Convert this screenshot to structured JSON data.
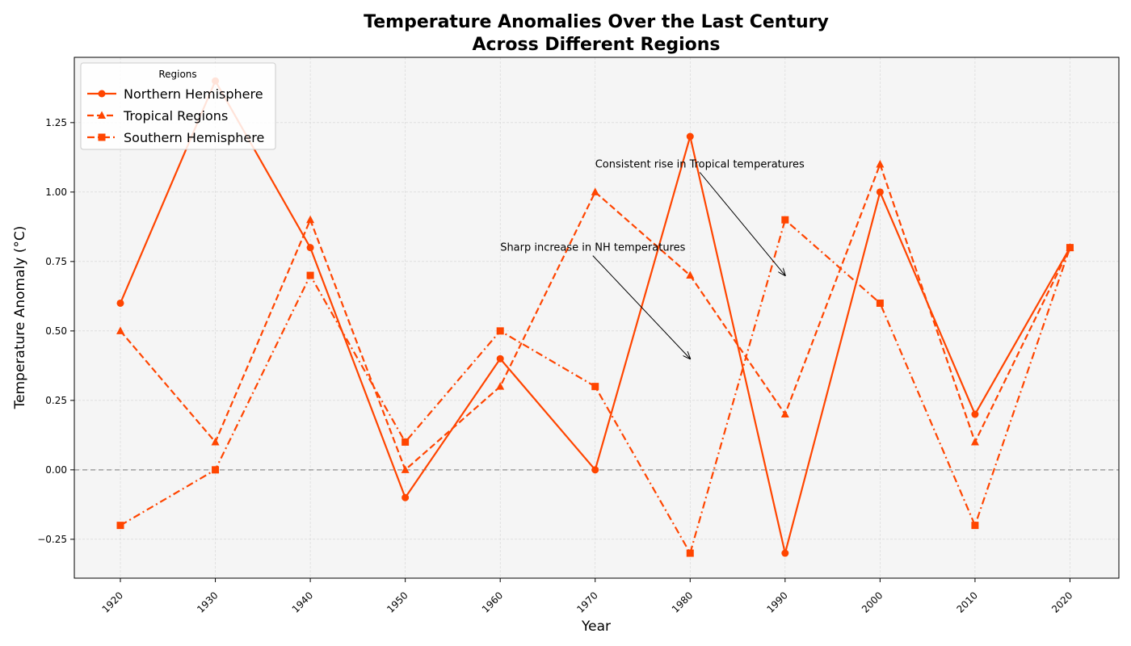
{
  "chart_data": {
    "type": "line",
    "title_line1": "Temperature Anomalies Over the Last Century",
    "title_line2": "Across Different Regions",
    "xlabel": "Year",
    "ylabel": "Temperature Anomaly (°C)",
    "x": [
      1920,
      1930,
      1940,
      1950,
      1960,
      1970,
      1980,
      1990,
      2000,
      2010,
      2020
    ],
    "xlim": [
      1915.15,
      2025.15
    ],
    "ylim": [
      -0.39,
      1.485
    ],
    "yticks": [
      -0.25,
      0.0,
      0.25,
      0.5,
      0.75,
      1.0,
      1.25
    ],
    "ytick_labels": [
      "−0.25",
      "0.00",
      "0.25",
      "0.50",
      "0.75",
      "1.00",
      "1.25"
    ],
    "grid": true,
    "reference_line": 0,
    "legend": {
      "title": "Regions",
      "placement": "top-left"
    },
    "color": "#FF4500",
    "series": [
      {
        "name": "Northern Hemisphere",
        "marker": "circle",
        "linestyle": "solid",
        "values": [
          0.6,
          1.4,
          0.8,
          -0.1,
          0.4,
          0.0,
          1.2,
          -0.3,
          1.0,
          0.2,
          0.8
        ]
      },
      {
        "name": "Tropical Regions",
        "marker": "triangle",
        "linestyle": "dashed",
        "values": [
          0.5,
          0.1,
          0.9,
          0.0,
          0.3,
          1.0,
          0.7,
          0.2,
          1.1,
          0.1,
          0.8
        ]
      },
      {
        "name": "Southern Hemisphere",
        "marker": "square",
        "linestyle": "dashdot",
        "values": [
          -0.2,
          0.0,
          0.7,
          0.1,
          0.5,
          0.3,
          -0.3,
          0.9,
          0.6,
          -0.2,
          0.8
        ]
      }
    ],
    "annotations": [
      {
        "text": "Sharp increase in NH temperatures",
        "text_at": [
          1960,
          0.8
        ],
        "point": [
          1980,
          0.4
        ]
      },
      {
        "text": "Consistent rise in Tropical temperatures",
        "text_at": [
          1970,
          1.1
        ],
        "point": [
          1990,
          0.7
        ]
      }
    ]
  }
}
